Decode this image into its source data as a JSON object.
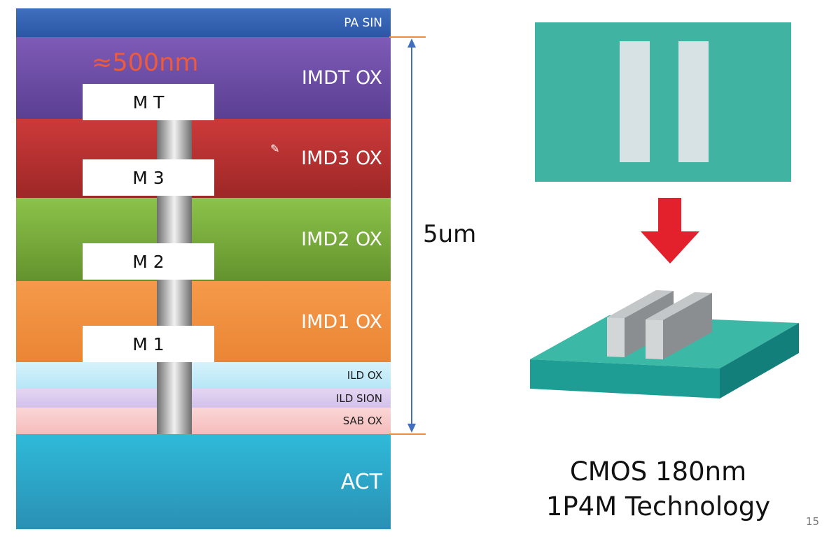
{
  "layers": {
    "pa_sin": "PA SIN",
    "imdt_ox": "IMDT OX",
    "imd3_ox": "IMD3 OX",
    "imd2_ox": "IMD2 OX",
    "imd1_ox": "IMD1 OX",
    "ild_ox": "ILD OX",
    "ild_sion": "ILD SION",
    "sab_ox": "SAB OX",
    "act": "ACT"
  },
  "metals": {
    "mt": "M T",
    "m3": "M 3",
    "m2": "M 2",
    "m1": "M 1"
  },
  "annotations": {
    "metal_thickness": "≈500nm",
    "stack_thickness": "5um"
  },
  "caption": {
    "line1": "CMOS 180nm",
    "line2": "1P4M Technology"
  },
  "page_number": "15",
  "colors": {
    "arrow_red": "#e3212d",
    "dimension_line": "#3f6fbe",
    "dimension_tick": "#f08a3c",
    "teal": "#41b3a2"
  }
}
